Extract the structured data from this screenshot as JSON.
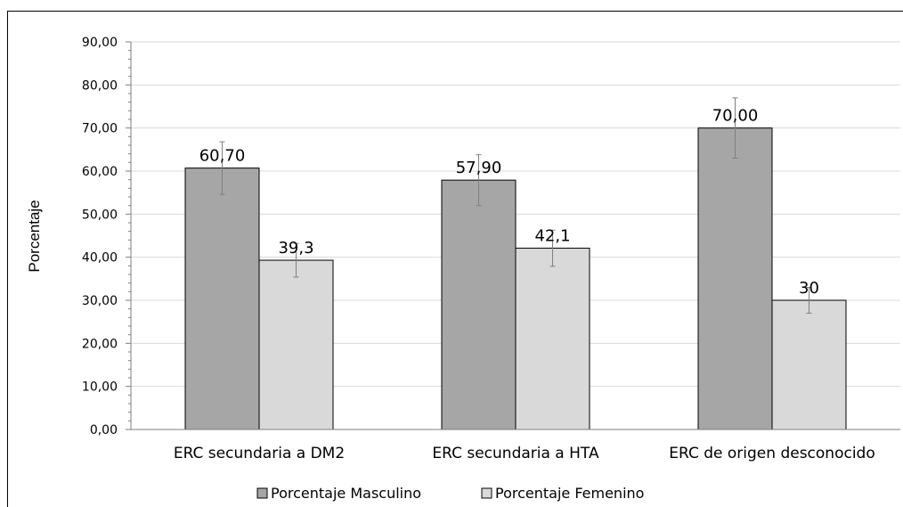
{
  "chart_data": {
    "type": "bar",
    "categories": [
      "ERC secundaria a DM2",
      "ERC secundaria a HTA",
      "ERC de origen desconocido"
    ],
    "series": [
      {
        "name": "Porcentaje Masculino",
        "values": [
          60.7,
          57.9,
          70.0
        ],
        "data_labels": [
          "60,70",
          "57,90",
          "70,00"
        ],
        "error": [
          6.1,
          5.9,
          7.0
        ],
        "color": "#a6a6a6"
      },
      {
        "name": "Porcentaje Femenino",
        "values": [
          39.3,
          42.1,
          30.0
        ],
        "data_labels": [
          "39,3",
          "42,1",
          "30"
        ],
        "error": [
          3.9,
          4.2,
          3.0
        ],
        "color": "#d9d9d9"
      }
    ],
    "ylabel": "Porcentaje",
    "xlabel": "",
    "ylim": [
      0,
      90
    ],
    "yticks": [
      0,
      10,
      20,
      30,
      40,
      50,
      60,
      70,
      80,
      90
    ],
    "ytick_labels": [
      "0,00",
      "10,00",
      "20,00",
      "30,00",
      "40,00",
      "50,00",
      "60,00",
      "70,00",
      "80,00",
      "90,00"
    ],
    "grid": true,
    "legend_position": "bottom"
  }
}
